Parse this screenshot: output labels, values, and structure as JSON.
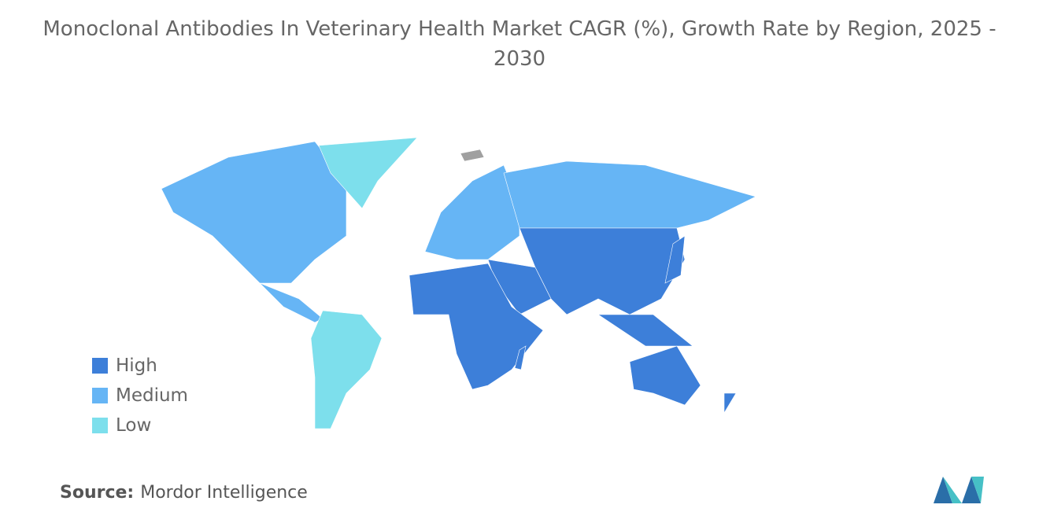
{
  "title": "Monoclonal Antibodies In Veterinary Health Market CAGR (%), Growth Rate by Region, 2025 - 2030",
  "legend": [
    {
      "label": "High",
      "color": "#3d7fd9"
    },
    {
      "label": "Medium",
      "color": "#66b5f5"
    },
    {
      "label": "Low",
      "color": "#7ddfec"
    }
  ],
  "source": {
    "label": "Source:",
    "text": "Mordor Intelligence"
  }
}
